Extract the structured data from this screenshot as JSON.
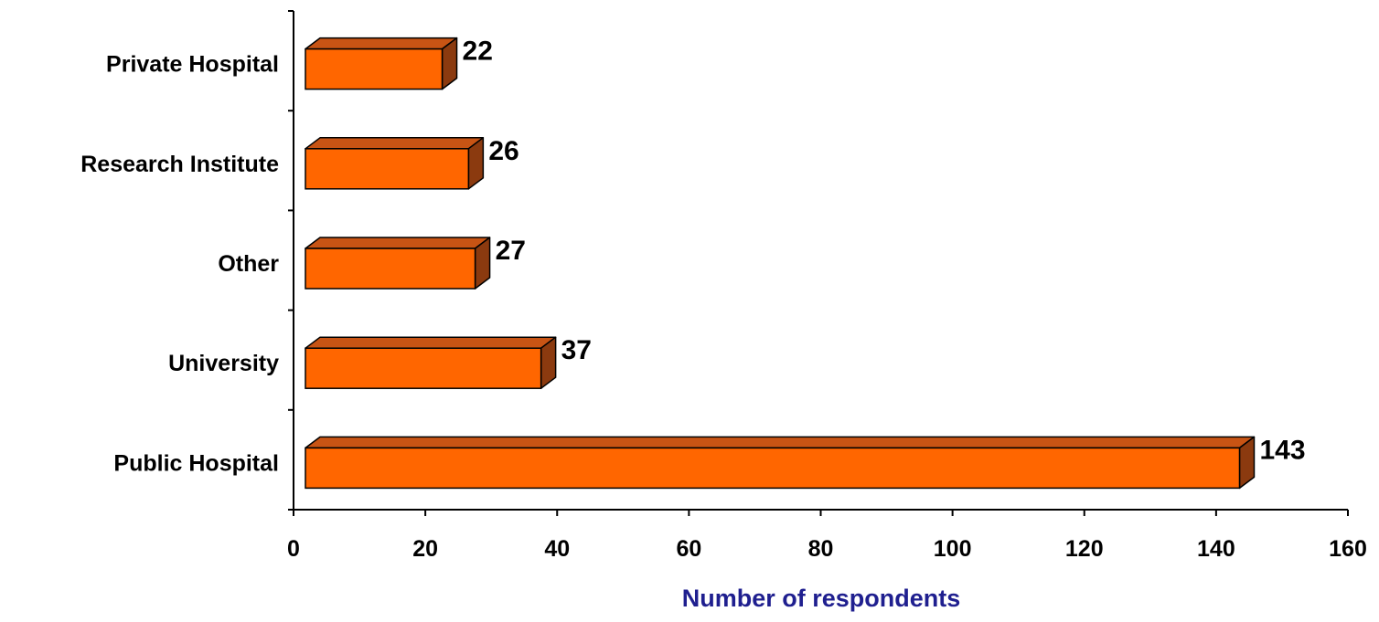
{
  "chart_data": {
    "type": "bar",
    "orientation": "horizontal",
    "style": "3d",
    "categories": [
      "Private Hospital",
      "Research Institute",
      "Other",
      "University",
      "Public Hospital"
    ],
    "values": [
      22,
      26,
      27,
      37,
      143
    ],
    "xlabel": "Number of respondents",
    "ylabel": "",
    "xlim": [
      0,
      160
    ],
    "xticks": [
      "0",
      "20",
      "40",
      "60",
      "80",
      "100",
      "120",
      "140",
      "160"
    ],
    "grid": false,
    "legend": "none",
    "colors": {
      "bar_front": "#ff6600",
      "bar_top": "#c85414",
      "bar_side": "#8b3a0f",
      "axis_title": "#1f1f8f"
    }
  }
}
